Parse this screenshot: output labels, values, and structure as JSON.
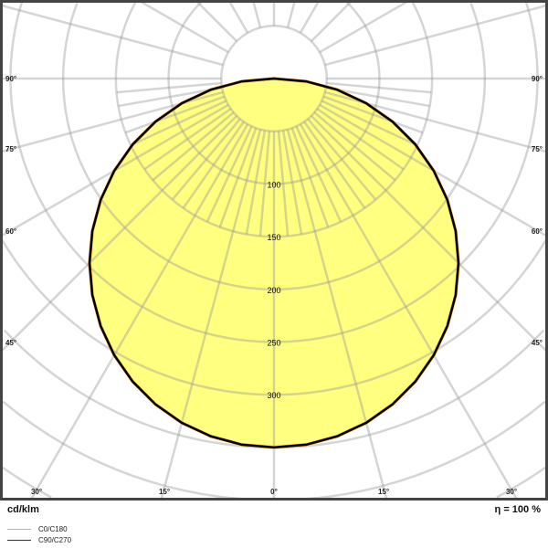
{
  "chart_data": {
    "type": "polar",
    "unit_label": "cd/klm",
    "efficiency_label": "η = 100 %",
    "ring_values": [
      50,
      100,
      150,
      200,
      250,
      300,
      350,
      400,
      450,
      500,
      550
    ],
    "ring_labels": [
      "100",
      "150",
      "200",
      "250",
      "300"
    ],
    "angle_labels_left": [
      "90°",
      "75°",
      "60°",
      "45°"
    ],
    "angle_labels_bottom": [
      "30°",
      "15°",
      "0°",
      "15°",
      "30°"
    ],
    "angle_labels_right": [
      "90°",
      "75°",
      "60°",
      "45°"
    ],
    "angles": [
      0,
      5,
      10,
      15,
      20,
      25,
      30,
      35,
      40,
      45,
      50,
      55,
      60,
      65,
      70,
      75,
      80,
      85,
      90
    ],
    "series": [
      {
        "name": "C0/C180",
        "color": "#f0a830",
        "values": [
          350,
          348.7,
          344.7,
          338.1,
          328.9,
          317.2,
          303.1,
          286.7,
          268.1,
          247.5,
          225,
          200.8,
          175,
          147.9,
          119.7,
          90.6,
          60.8,
          30.5,
          0
        ]
      },
      {
        "name": "C90/C270",
        "color": "#000000",
        "values": [
          350,
          348.7,
          344.7,
          338.1,
          328.9,
          317.2,
          303.1,
          286.7,
          268.1,
          247.5,
          225,
          200.8,
          175,
          147.9,
          119.7,
          90.6,
          60.8,
          30.5,
          0
        ]
      }
    ],
    "fill_color": "#ffff80",
    "grid": true
  }
}
